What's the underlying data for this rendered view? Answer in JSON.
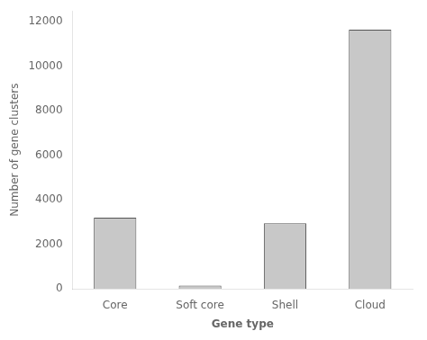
{
  "chart_data": {
    "type": "bar",
    "categories": [
      "Core",
      "Soft core",
      "Shell",
      "Cloud"
    ],
    "values": [
      3200,
      150,
      2950,
      11650
    ],
    "color": "#c8c8c8",
    "xlabel": "Gene type",
    "ylabel": "Number of gene clusters",
    "ylim": [
      0,
      12500
    ],
    "yticks": [
      0,
      2000,
      4000,
      6000,
      8000,
      10000,
      12000
    ],
    "grid": false
  }
}
